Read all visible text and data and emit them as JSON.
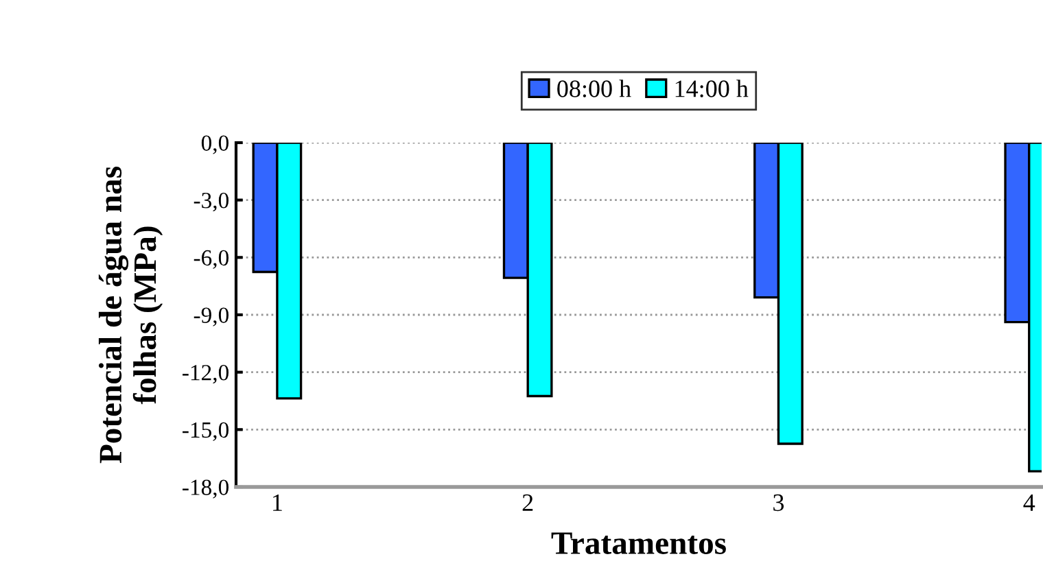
{
  "chart_data": {
    "type": "bar",
    "xlabel": "Tratamentos",
    "ylabel": "Potencial de água nas\nfolhas (MPa)",
    "categories": [
      "1",
      "2",
      "3",
      "4"
    ],
    "series": [
      {
        "name": "08:00 h",
        "color": "#3366ff",
        "values": [
          -6.76,
          -7.07,
          -8.09,
          -9.38
        ]
      },
      {
        "name": "14:00 h",
        "color": "#00ffff",
        "values": [
          -13.37,
          -13.25,
          -15.74,
          -17.18
        ]
      }
    ],
    "ylim": [
      -18,
      0
    ],
    "yticks": [
      {
        "value": 0,
        "label": "0,0"
      },
      {
        "value": -3,
        "label": "-3,0"
      },
      {
        "value": -6,
        "label": "-6,0"
      },
      {
        "value": -9,
        "label": "-9,0"
      },
      {
        "value": -12,
        "label": "-12,0"
      },
      {
        "value": -15,
        "label": "-15,0"
      },
      {
        "value": -18,
        "label": "-18,0"
      }
    ],
    "grid": "y",
    "legend": "top"
  }
}
